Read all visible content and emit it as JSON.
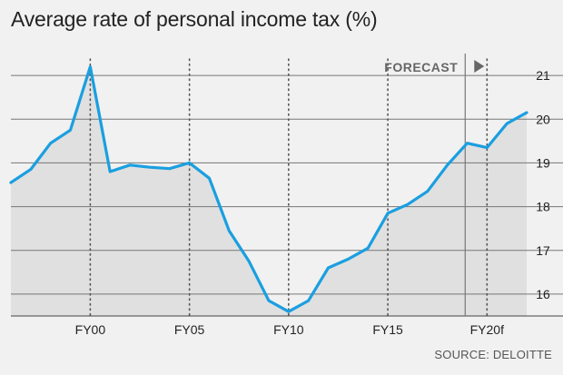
{
  "chart_data": {
    "type": "line",
    "title": "Average rate of personal income tax (%)",
    "source": "SOURCE: DELOITTE",
    "forecast_label": "FORECAST",
    "forecast_start": 2018.9,
    "x_range": [
      1996,
      2022
    ],
    "ylim": [
      15.5,
      21.5
    ],
    "y_ticks": [
      16,
      17,
      18,
      19,
      20,
      21
    ],
    "x_ticks": [
      {
        "x": 2000,
        "label": "FY00"
      },
      {
        "x": 2005,
        "label": "FY05"
      },
      {
        "x": 2010,
        "label": "FY10"
      },
      {
        "x": 2015,
        "label": "FY15"
      },
      {
        "x": 2020,
        "label": "FY20f"
      }
    ],
    "series": [
      {
        "points": [
          {
            "x": 1996,
            "y": 18.55
          },
          {
            "x": 1997,
            "y": 18.85
          },
          {
            "x": 1998,
            "y": 19.45
          },
          {
            "x": 1999,
            "y": 19.75
          },
          {
            "x": 2000,
            "y": 21.2
          },
          {
            "x": 2001,
            "y": 18.8
          },
          {
            "x": 2002,
            "y": 18.95
          },
          {
            "x": 2003,
            "y": 18.9
          },
          {
            "x": 2004,
            "y": 18.87
          },
          {
            "x": 2005,
            "y": 19.0
          },
          {
            "x": 2006,
            "y": 18.65
          },
          {
            "x": 2007,
            "y": 17.45
          },
          {
            "x": 2008,
            "y": 16.75
          },
          {
            "x": 2009,
            "y": 15.85
          },
          {
            "x": 2010,
            "y": 15.6
          },
          {
            "x": 2011,
            "y": 15.85
          },
          {
            "x": 2012,
            "y": 16.6
          },
          {
            "x": 2013,
            "y": 16.8
          },
          {
            "x": 2014,
            "y": 17.05
          },
          {
            "x": 2015,
            "y": 17.85
          },
          {
            "x": 2016,
            "y": 18.05
          },
          {
            "x": 2017,
            "y": 18.35
          },
          {
            "x": 2018,
            "y": 18.95
          },
          {
            "x": 2019,
            "y": 19.45
          },
          {
            "x": 2020,
            "y": 19.35
          },
          {
            "x": 2021,
            "y": 19.9
          },
          {
            "x": 2022,
            "y": 20.15
          }
        ]
      }
    ]
  },
  "colors": {
    "line": "#1a9fe0",
    "fill": "#e0e0e0",
    "background": "#f1f1f1",
    "grid": "#777777",
    "forecast_divider": "#777777"
  }
}
